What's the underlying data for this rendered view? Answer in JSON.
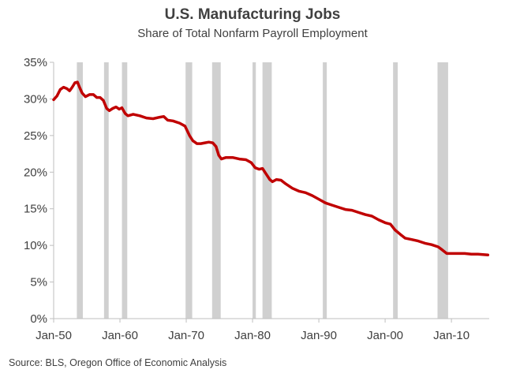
{
  "chart_data": {
    "type": "line",
    "title": "U.S. Manufacturing Jobs",
    "subtitle": "Share of Total Nonfarm Payroll Employment",
    "source": "Source: BLS, Oregon Office of Economic Analysis",
    "xlim": [
      1950,
      2015.7
    ],
    "ylim": [
      0,
      35
    ],
    "x_ticks": [
      {
        "value": 1950,
        "label": "Jan-50"
      },
      {
        "value": 1960,
        "label": "Jan-60"
      },
      {
        "value": 1970,
        "label": "Jan-70"
      },
      {
        "value": 1980,
        "label": "Jan-80"
      },
      {
        "value": 1990,
        "label": "Jan-90"
      },
      {
        "value": 2000,
        "label": "Jan-00"
      },
      {
        "value": 2010,
        "label": "Jan-10"
      }
    ],
    "y_ticks": [
      {
        "value": 0,
        "label": "0%"
      },
      {
        "value": 5,
        "label": "5%"
      },
      {
        "value": 10,
        "label": "10%"
      },
      {
        "value": 15,
        "label": "15%"
      },
      {
        "value": 20,
        "label": "20%"
      },
      {
        "value": 25,
        "label": "25%"
      },
      {
        "value": 30,
        "label": "30%"
      },
      {
        "value": 35,
        "label": "35%"
      }
    ],
    "recessions": [
      [
        1953.5,
        1954.4
      ],
      [
        1957.6,
        1958.3
      ],
      [
        1960.3,
        1961.1
      ],
      [
        1969.9,
        1970.9
      ],
      [
        1973.9,
        1975.2
      ],
      [
        1980.0,
        1980.5
      ],
      [
        1981.5,
        1982.9
      ],
      [
        1990.6,
        1991.2
      ],
      [
        2001.2,
        2001.9
      ],
      [
        2007.9,
        2009.5
      ]
    ],
    "colors": {
      "line": "#c00000",
      "recession": "#d0d0d0",
      "axis": "#bfbfbf"
    },
    "series": [
      {
        "values": [
          [
            1950.0,
            29.9
          ],
          [
            1950.5,
            30.4
          ],
          [
            1951.0,
            31.3
          ],
          [
            1951.5,
            31.6
          ],
          [
            1952.0,
            31.4
          ],
          [
            1952.4,
            31.1
          ],
          [
            1952.8,
            31.6
          ],
          [
            1953.2,
            32.2
          ],
          [
            1953.6,
            32.3
          ],
          [
            1953.9,
            31.6
          ],
          [
            1954.3,
            30.8
          ],
          [
            1954.8,
            30.3
          ],
          [
            1955.4,
            30.6
          ],
          [
            1956.0,
            30.6
          ],
          [
            1956.5,
            30.2
          ],
          [
            1957.0,
            30.2
          ],
          [
            1957.5,
            29.8
          ],
          [
            1958.0,
            28.7
          ],
          [
            1958.4,
            28.4
          ],
          [
            1958.9,
            28.7
          ],
          [
            1959.4,
            28.9
          ],
          [
            1959.9,
            28.6
          ],
          [
            1960.3,
            28.8
          ],
          [
            1960.8,
            28.0
          ],
          [
            1961.2,
            27.7
          ],
          [
            1962.0,
            27.9
          ],
          [
            1963.0,
            27.7
          ],
          [
            1964.0,
            27.4
          ],
          [
            1965.0,
            27.3
          ],
          [
            1966.0,
            27.5
          ],
          [
            1966.6,
            27.6
          ],
          [
            1967.2,
            27.1
          ],
          [
            1968.0,
            27.0
          ],
          [
            1969.0,
            26.7
          ],
          [
            1969.8,
            26.3
          ],
          [
            1970.5,
            25.0
          ],
          [
            1971.0,
            24.3
          ],
          [
            1971.6,
            23.9
          ],
          [
            1972.2,
            23.9
          ],
          [
            1972.8,
            24.0
          ],
          [
            1973.4,
            24.1
          ],
          [
            1974.0,
            24.0
          ],
          [
            1974.5,
            23.5
          ],
          [
            1974.9,
            22.3
          ],
          [
            1975.3,
            21.8
          ],
          [
            1976.0,
            22.0
          ],
          [
            1977.0,
            22.0
          ],
          [
            1978.0,
            21.8
          ],
          [
            1979.0,
            21.7
          ],
          [
            1979.8,
            21.3
          ],
          [
            1980.4,
            20.6
          ],
          [
            1981.0,
            20.4
          ],
          [
            1981.5,
            20.5
          ],
          [
            1982.0,
            19.8
          ],
          [
            1982.6,
            19.0
          ],
          [
            1983.0,
            18.7
          ],
          [
            1983.6,
            19.0
          ],
          [
            1984.3,
            18.9
          ],
          [
            1985.0,
            18.4
          ],
          [
            1986.0,
            17.8
          ],
          [
            1987.0,
            17.4
          ],
          [
            1988.0,
            17.2
          ],
          [
            1989.0,
            16.8
          ],
          [
            1990.0,
            16.3
          ],
          [
            1991.0,
            15.8
          ],
          [
            1992.0,
            15.5
          ],
          [
            1993.0,
            15.2
          ],
          [
            1994.0,
            14.9
          ],
          [
            1995.0,
            14.8
          ],
          [
            1996.0,
            14.5
          ],
          [
            1997.0,
            14.2
          ],
          [
            1998.0,
            14.0
          ],
          [
            1999.0,
            13.5
          ],
          [
            2000.0,
            13.1
          ],
          [
            2000.8,
            12.9
          ],
          [
            2001.5,
            12.1
          ],
          [
            2002.3,
            11.5
          ],
          [
            2003.0,
            11.0
          ],
          [
            2004.0,
            10.8
          ],
          [
            2005.0,
            10.6
          ],
          [
            2006.0,
            10.3
          ],
          [
            2007.0,
            10.1
          ],
          [
            2008.0,
            9.8
          ],
          [
            2008.6,
            9.4
          ],
          [
            2009.3,
            8.9
          ],
          [
            2010.0,
            8.9
          ],
          [
            2011.0,
            8.9
          ],
          [
            2012.0,
            8.9
          ],
          [
            2013.0,
            8.8
          ],
          [
            2014.0,
            8.8
          ],
          [
            2015.5,
            8.7
          ]
        ]
      }
    ]
  }
}
